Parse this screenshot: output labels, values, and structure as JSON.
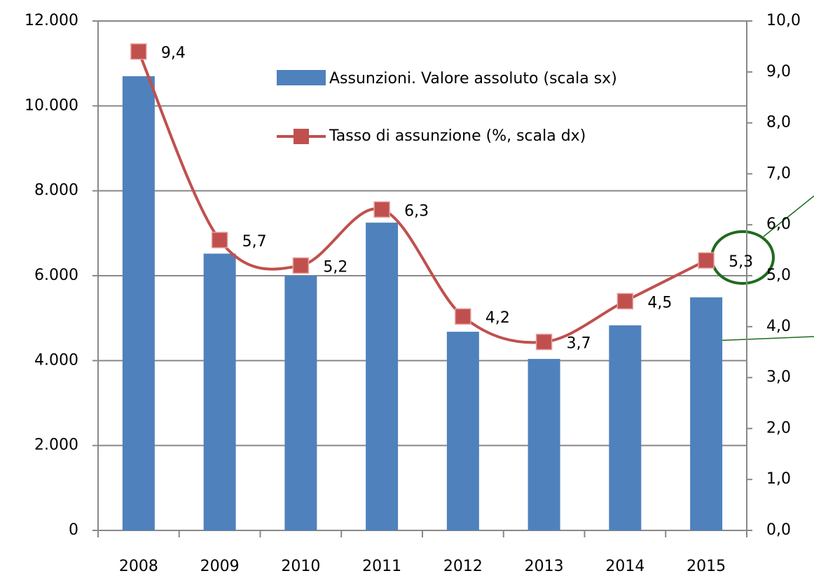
{
  "chart_data": {
    "type": "bar",
    "categories": [
      "2008",
      "2009",
      "2010",
      "2011",
      "2012",
      "2013",
      "2014",
      "2015"
    ],
    "series": [
      {
        "name": "Assunzioni. Valore assoluto (scala sx)",
        "color": "#4f81bd",
        "values": [
          10700,
          6520,
          6000,
          7250,
          4680,
          4040,
          4830,
          5490
        ]
      },
      {
        "name": "Tasso di assunzione (%, scala dx)",
        "color": "#c0504d",
        "axis": "y2",
        "type": "line",
        "values": [
          9.4,
          5.7,
          5.2,
          6.3,
          4.2,
          3.7,
          4.5,
          5.3
        ],
        "value_labels": [
          "9,4",
          "5,7",
          "5,2",
          "6,3",
          "4,2",
          "3,7",
          "4,5",
          "5,3"
        ]
      }
    ],
    "ylim": [
      0,
      12000
    ],
    "yticks": [
      0,
      {
        "value": 2000,
        "label": "2.000"
      },
      {
        "value": 4000,
        "label": "4.000"
      },
      {
        "value": 6000,
        "label": "6.000"
      },
      {
        "value": 8000,
        "label": "8.000"
      },
      {
        "value": 10000,
        "label": "10.000"
      },
      {
        "value": 12000,
        "label": "12.000"
      }
    ],
    "y2lim": [
      0,
      10
    ],
    "y2ticks": [
      {
        "value": 0,
        "label": "0,0"
      },
      {
        "value": 1,
        "label": "1,0"
      },
      {
        "value": 2,
        "label": "2,0"
      },
      {
        "value": 3,
        "label": "3,0"
      },
      {
        "value": 4,
        "label": "4,0"
      },
      {
        "value": 5,
        "label": "5,0"
      },
      {
        "value": 6,
        "label": "6,0"
      },
      {
        "value": 7,
        "label": "7,0"
      },
      {
        "value": 8,
        "label": "8,0"
      },
      {
        "value": 9,
        "label": "9,0"
      },
      {
        "value": 10,
        "label": "10,0"
      }
    ],
    "grid": true
  }
}
